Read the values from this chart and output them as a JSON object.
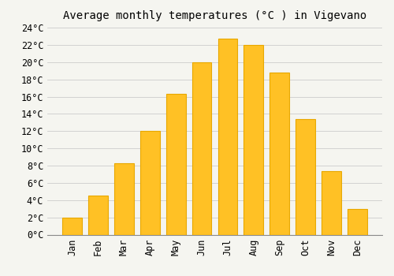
{
  "months": [
    "Jan",
    "Feb",
    "Mar",
    "Apr",
    "May",
    "Jun",
    "Jul",
    "Aug",
    "Sep",
    "Oct",
    "Nov",
    "Dec"
  ],
  "values": [
    2.0,
    4.5,
    8.3,
    12.0,
    16.3,
    20.0,
    22.7,
    22.0,
    18.8,
    13.4,
    7.4,
    3.0
  ],
  "bar_color": "#FFC125",
  "bar_edge_color": "#E8A800",
  "title": "Average monthly temperatures (°C ) in Vigevano",
  "ylim": [
    0,
    24
  ],
  "ytick_step": 2,
  "background_color": "#f5f5f0",
  "plot_background_color": "#f5f5f0",
  "grid_color": "#cccccc",
  "title_fontsize": 10,
  "tick_fontsize": 8.5,
  "font_family": "monospace"
}
